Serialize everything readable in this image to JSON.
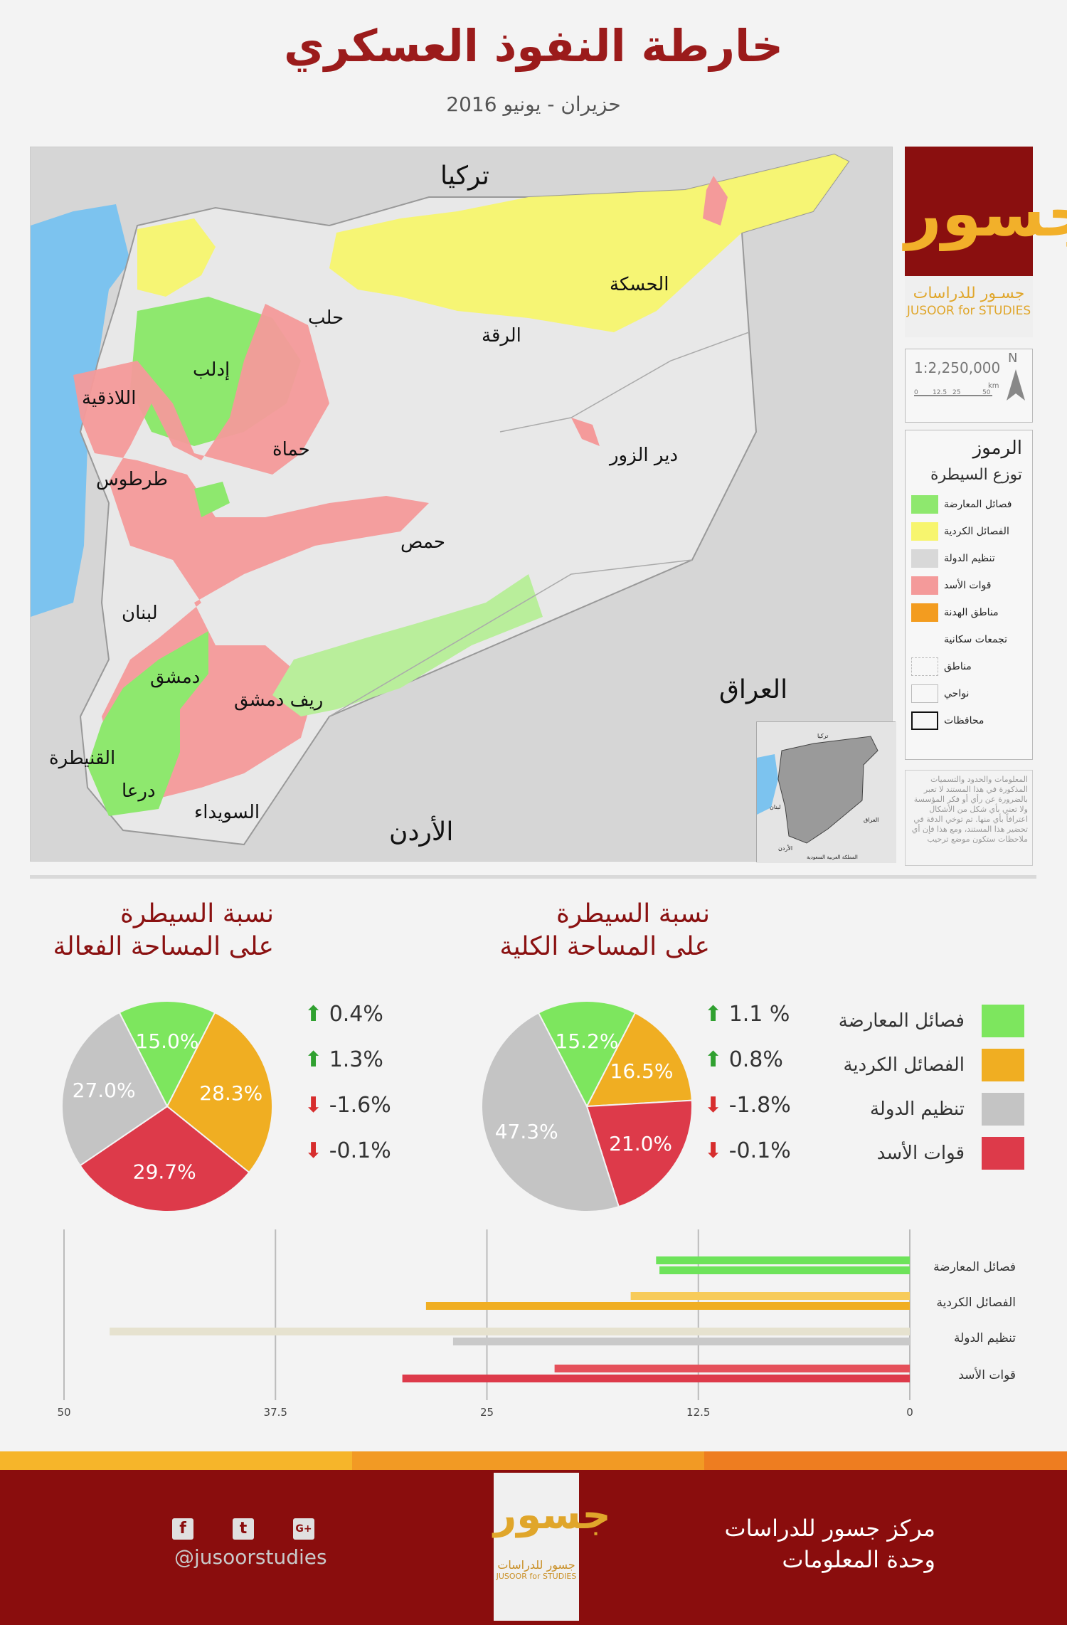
{
  "title": "خارطة النفوذ العسكري",
  "subtitle": "حزيران - يونيو 2016",
  "map": {
    "places": {
      "turkey": "تركيا",
      "hasakah": "الحسكة",
      "aleppo": "حلب",
      "raqqa": "الرقة",
      "idlib": "إدلب",
      "latakia": "اللاذقية",
      "hama": "حماة",
      "deir": "دير الزور",
      "tartus": "طرطوس",
      "homs": "حمص",
      "lebanon": "لبنان",
      "damascus": "دمشق",
      "iraq": "العراق",
      "rif_dimashq": "ريف دمشق",
      "quneitra": "القنيطرة",
      "daraa": "درعا",
      "suwayda": "السويداء",
      "jordan": "الأردن"
    },
    "inset": {
      "turkey": "تركيا",
      "lebanon": "لبنان",
      "iraq": "العراق",
      "jordan": "الأردن",
      "saudi": "المملكة العربية السعودية"
    }
  },
  "logo": {
    "glyph": "جسور",
    "name_ar": "جسـور للدراسات",
    "name_en": "JUSOOR for STUDIES"
  },
  "scale": {
    "ratio": "1:2,250,000",
    "north": "N",
    "unit": "km",
    "ticks": [
      "0",
      "12.5",
      "25",
      "50"
    ]
  },
  "legend": {
    "heading": "الرموز",
    "subheading": "توزع السيطرة",
    "items": [
      {
        "label": "فصائل المعارضة",
        "color": "#8ee86e"
      },
      {
        "label": "الفصائل الكردية",
        "color": "#f7f56e"
      },
      {
        "label": "تنظيم الدولة",
        "color": "#d8d8d8"
      },
      {
        "label": "قوات الأسد",
        "color": "#f49a9a"
      },
      {
        "label": "مناطق الهدنة",
        "color": "#f39c1f"
      },
      {
        "label": "تجمعات سكانية",
        "color": ""
      },
      {
        "label": "مناطق",
        "color": ""
      },
      {
        "label": "نواحي",
        "color": ""
      },
      {
        "label": "محافظات",
        "color": ""
      }
    ]
  },
  "disclaimer": "المعلومات والحدود والتسميات المذكورة في هذا المستند لا تعبر بالضرورة عن رأي أو فكر المؤسسة ولا تعني بأي شكل من الأشكال اعترافاً بأي منها. تم توخي الدقة في تحضير هذا المستند، ومع هذا فإن أي ملاحظات ستكون موضع ترحيب",
  "chart_data": [
    {
      "type": "pie",
      "title": "نسبة السيطرة",
      "subtitle": "على المساحة الفعالة",
      "categories": [
        "فصائل المعارضة",
        "الفصائل الكردية",
        "قوات الأسد",
        "تنظيم الدولة"
      ],
      "values": [
        15.0,
        28.3,
        29.7,
        27.0
      ],
      "labels": [
        "15.0%",
        "28.3%",
        "29.7%",
        "27.0%"
      ],
      "colors": [
        "#7de65e",
        "#f0ae22",
        "#dd3a4a",
        "#c4c4c4"
      ],
      "changes": [
        {
          "text": "0.4%",
          "dir": "up"
        },
        {
          "text": "1.3%",
          "dir": "up"
        },
        {
          "text": "-1.6%",
          "dir": "down"
        },
        {
          "text": "-0.1%",
          "dir": "down"
        }
      ]
    },
    {
      "type": "pie",
      "title": "نسبة السيطرة",
      "subtitle": "على المساحة الكلية",
      "categories": [
        "فصائل المعارضة",
        "الفصائل الكردية",
        "قوات الأسد",
        "تنظيم الدولة"
      ],
      "values": [
        15.2,
        16.5,
        21.0,
        47.3
      ],
      "labels": [
        "15.2%",
        "16.5%",
        "21.0%",
        "47.3%"
      ],
      "colors": [
        "#7de65e",
        "#f0ae22",
        "#dd3a4a",
        "#c4c4c4"
      ],
      "changes": [
        {
          "text": "1.1 %",
          "dir": "up"
        },
        {
          "text": "0.8%",
          "dir": "up"
        },
        {
          "text": "-1.8%",
          "dir": "down"
        },
        {
          "text": "-0.1%",
          "dir": "down"
        }
      ]
    },
    {
      "type": "bar",
      "orientation": "horizontal",
      "categories": [
        "فصائل المعارضة",
        "الفصائل الكردية",
        "تنظيم الدولة",
        "قوات الأسد"
      ],
      "series": [
        {
          "values": [
            15.0,
            16.5,
            47.3,
            21.0
          ],
          "colors": [
            "#6de35a",
            "#f7cb5a",
            "#e6e2cf",
            "#e5505a"
          ]
        },
        {
          "values": [
            14.8,
            28.6,
            27.0,
            30.0
          ],
          "colors": [
            "#6de35a",
            "#f0ae22",
            "#c9c9c9",
            "#dd3a4a"
          ]
        }
      ],
      "xlim": [
        50,
        0
      ],
      "xticks": [
        "50",
        "37.5",
        "25",
        "12.5",
        "0"
      ],
      "grid": true
    }
  ],
  "pie_legend": [
    {
      "label": "فصائل المعارضة",
      "color": "#7de65e"
    },
    {
      "label": "الفصائل الكردية",
      "color": "#f0ae22"
    },
    {
      "label": "تنظيم الدولة",
      "color": "#c4c4c4"
    },
    {
      "label": "قوات الأسد",
      "color": "#dd3a4a"
    }
  ],
  "footer": {
    "org": "مركز جسور للدراسات",
    "unit": "وحدة المعلومات",
    "handle": "@jusoorstudies",
    "social": [
      "f",
      "t",
      "G+"
    ],
    "logo_glyph": "جسور",
    "logo_ar": "جسور للدراسات",
    "logo_en": "JUSOOR for STUDIES"
  }
}
